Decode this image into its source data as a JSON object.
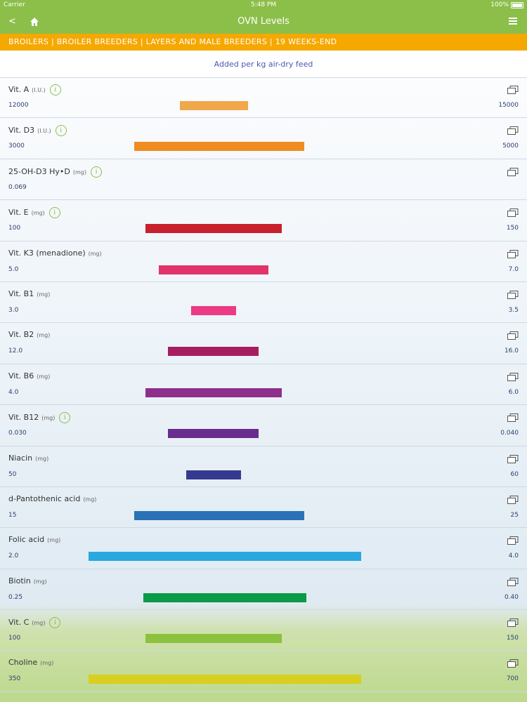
{
  "status": {
    "carrier": "Carrier",
    "time": "5:48 PM",
    "battery": "100%"
  },
  "nav": {
    "title": "OVN Levels",
    "back_icon": "chevron-left-icon",
    "home_icon": "home-icon",
    "menu_icon": "hamburger-menu-icon"
  },
  "category_bar": "BROILERS | BROILER BREEDERS | LAYERS AND MALE BREEDERS | 19 WEEKS-END",
  "subheading": "Added per kg air-dry feed",
  "range_scale": [
    0,
    1
  ],
  "rows": [
    {
      "name": "Vit. A",
      "unit": "(I.U.)",
      "info": true,
      "min": "12000",
      "max": "15000",
      "bar_start": 0.3,
      "bar_end": 0.5,
      "color": "#f0a84a"
    },
    {
      "name": "Vit. D3",
      "unit": "(I.U.)",
      "info": true,
      "min": "3000",
      "max": "5000",
      "bar_start": 0.167,
      "bar_end": 0.667,
      "color": "#ef8c22"
    },
    {
      "name": "25-OH-D3 Hy•D",
      "unit": "(mg)",
      "info": true,
      "min": "0.069",
      "max": "",
      "bar_start": null,
      "bar_end": null,
      "color": ""
    },
    {
      "name": "Vit. E",
      "unit": "(mg)",
      "info": true,
      "min": "100",
      "max": "150",
      "bar_start": 0.2,
      "bar_end": 0.6,
      "color": "#c8202c"
    },
    {
      "name": "Vit. K3 (menadione)",
      "unit": "(mg)",
      "info": false,
      "min": "5.0",
      "max": "7.0",
      "bar_start": 0.24,
      "bar_end": 0.56,
      "color": "#e2336b"
    },
    {
      "name": "Vit. B1",
      "unit": "(mg)",
      "info": false,
      "min": "3.0",
      "max": "3.5",
      "bar_start": 0.333,
      "bar_end": 0.467,
      "color": "#ec3a84"
    },
    {
      "name": "Vit. B2",
      "unit": "(mg)",
      "info": false,
      "min": "12.0",
      "max": "16.0",
      "bar_start": 0.267,
      "bar_end": 0.533,
      "color": "#a61e5f"
    },
    {
      "name": "Vit. B6",
      "unit": "(mg)",
      "info": false,
      "min": "4.0",
      "max": "6.0",
      "bar_start": 0.2,
      "bar_end": 0.6,
      "color": "#8e2f8c"
    },
    {
      "name": "Vit. B12",
      "unit": "(mg)",
      "info": true,
      "min": "0.030",
      "max": "0.040",
      "bar_start": 0.267,
      "bar_end": 0.533,
      "color": "#6a2d8d"
    },
    {
      "name": "Niacin",
      "unit": "(mg)",
      "info": false,
      "min": "50",
      "max": "60",
      "bar_start": 0.32,
      "bar_end": 0.48,
      "color": "#363a8e"
    },
    {
      "name": "d-Pantothenic acid",
      "unit": "(mg)",
      "info": false,
      "min": "15",
      "max": "25",
      "bar_start": 0.167,
      "bar_end": 0.667,
      "color": "#2a72b8"
    },
    {
      "name": "Folic acid",
      "unit": "(mg)",
      "info": false,
      "min": "2.0",
      "max": "4.0",
      "bar_start": 0.033,
      "bar_end": 0.833,
      "color": "#2aa8e0"
    },
    {
      "name": "Biotin",
      "unit": "(mg)",
      "info": false,
      "min": "0.25",
      "max": "0.40",
      "bar_start": 0.193,
      "bar_end": 0.673,
      "color": "#0a9a48"
    },
    {
      "name": "Vit. C",
      "unit": "(mg)",
      "info": true,
      "min": "100",
      "max": "150",
      "bar_start": 0.2,
      "bar_end": 0.6,
      "color": "#8cc13f"
    },
    {
      "name": "Choline",
      "unit": "(mg)",
      "info": false,
      "min": "350",
      "max": "700",
      "bar_start": 0.033,
      "bar_end": 0.833,
      "color": "#d8cf1e"
    }
  ]
}
